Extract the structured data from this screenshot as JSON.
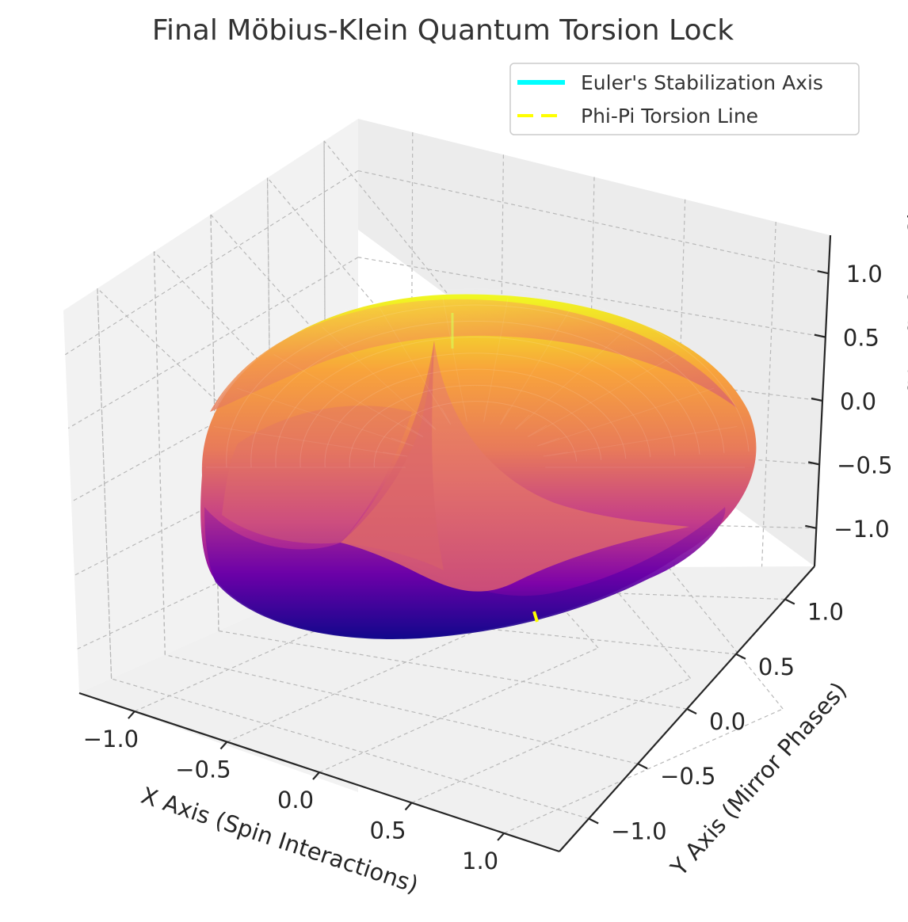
{
  "chart_data": {
    "type": "surface3d",
    "title": "Final Möbius-Klein Quantum Torsion Lock",
    "xlabel": "X Axis (Spin Interactions)",
    "ylabel": "Y Axis (Mirror Phases)",
    "zlabel": "Z Axis (Euler's Stabilization Axis)",
    "xlim": [
      -1.3,
      1.3
    ],
    "ylim": [
      -1.3,
      1.3
    ],
    "zlim": [
      -1.3,
      1.3
    ],
    "x_ticks": [
      -1.0,
      -0.5,
      0.0,
      0.5,
      1.0
    ],
    "y_ticks": [
      -1.0,
      -0.5,
      0.0,
      0.5,
      1.0
    ],
    "z_ticks": [
      -1.0,
      -0.5,
      0.0,
      0.5,
      1.0
    ],
    "x_tick_labels": [
      "−1.0",
      "−0.5",
      "0.0",
      "0.5",
      "1.0"
    ],
    "y_tick_labels": [
      "−1.0",
      "−0.5",
      "0.0",
      "0.5",
      "1.0"
    ],
    "z_tick_labels": [
      "−1.0",
      "−0.5",
      "0.0",
      "0.5",
      "1.0"
    ],
    "grid": true,
    "colormap": "plasma",
    "colors": {
      "surface_high": "#f0f921",
      "surface_mid_high": "#f89540",
      "surface_mid": "#cc4778",
      "surface_mid_low": "#7e03a8",
      "surface_low": "#0d0887"
    },
    "legend": {
      "placement": "top-right",
      "entries": [
        {
          "label": "Euler's Stabilization Axis",
          "color": "#00ffff",
          "style": "solid"
        },
        {
          "label": "Phi-Pi Torsion Line",
          "color": "#ffff00",
          "style": "dashed"
        }
      ]
    }
  }
}
